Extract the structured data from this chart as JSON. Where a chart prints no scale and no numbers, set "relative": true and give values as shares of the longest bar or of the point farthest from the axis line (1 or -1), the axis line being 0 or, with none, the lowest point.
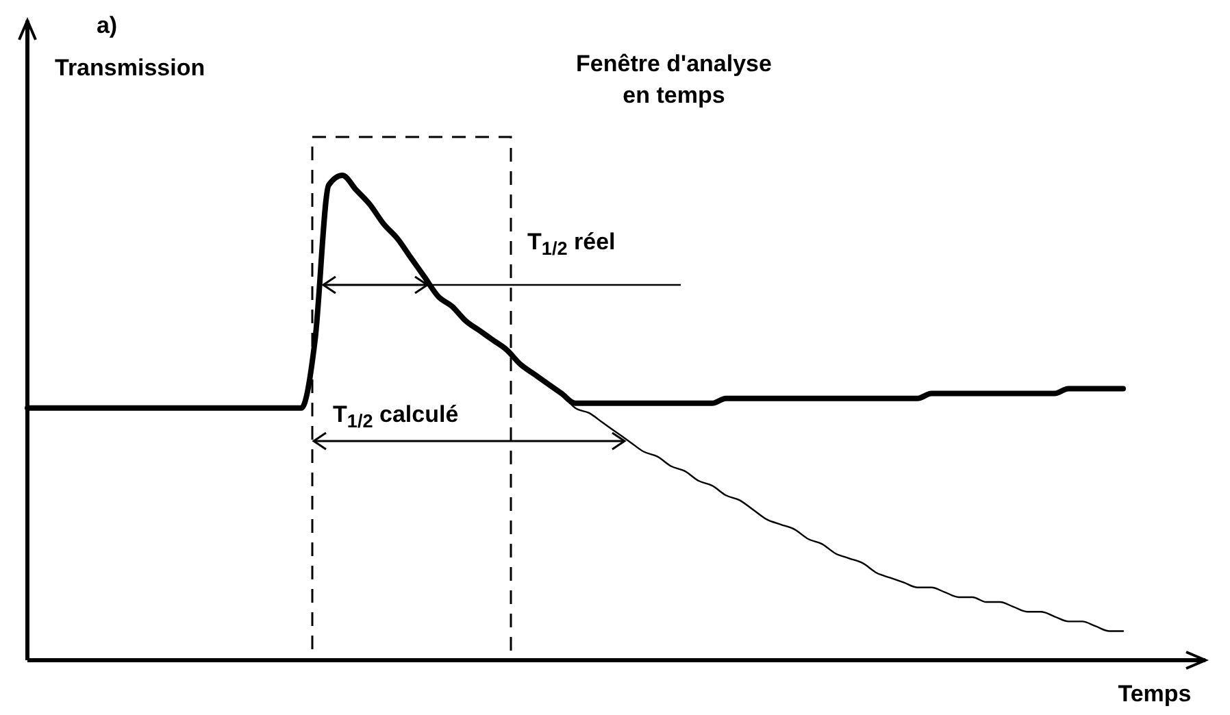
{
  "chart_data": {
    "type": "line",
    "relative": true,
    "title": "a)",
    "ylabel": "Transmission",
    "xlabel": "Temps",
    "categories": [
      null,
      null,
      null,
      null,
      null,
      null,
      null,
      null,
      null,
      null,
      null,
      null,
      null,
      null,
      null,
      null,
      null,
      null,
      null,
      null,
      null,
      null,
      null,
      null,
      null,
      null,
      null,
      null,
      null,
      null,
      null,
      null,
      null,
      null,
      null,
      null,
      null,
      null,
      null,
      null,
      null,
      null,
      null,
      null,
      null,
      null,
      null,
      null,
      null,
      null,
      null,
      null,
      null,
      null,
      null,
      null,
      null,
      null,
      null,
      null,
      null,
      null,
      null,
      null,
      null,
      null,
      null,
      null,
      null,
      null,
      null,
      null,
      null,
      null,
      null,
      null,
      null,
      null,
      null,
      null,
      null
    ],
    "series": [
      {
        "color": "#000000",
        "values": [
          0.52,
          0.52,
          0.52,
          0.52,
          0.52,
          0.52,
          0.52,
          0.52,
          0.52,
          0.52,
          0.52,
          0.52,
          0.52,
          0.52,
          0.52,
          0.52,
          0.52,
          0.52,
          0.52,
          0.52,
          0.52,
          0.66,
          0.98,
          1.0,
          0.97,
          0.94,
          0.9,
          0.87,
          0.83,
          0.79,
          0.75,
          0.73,
          0.7,
          0.68,
          0.66,
          0.64,
          0.61,
          0.59,
          0.57,
          0.55,
          0.53,
          0.53,
          0.53,
          0.53,
          0.53,
          0.53,
          0.53,
          0.53,
          0.53,
          0.53,
          0.53,
          0.54,
          0.54,
          0.54,
          0.54,
          0.54,
          0.54,
          0.54,
          0.54,
          0.54,
          0.54,
          0.54,
          0.54,
          0.54,
          0.54,
          0.54,
          0.55,
          0.55,
          0.55,
          0.55,
          0.55,
          0.55,
          0.55,
          0.55,
          0.55,
          0.55,
          0.56,
          0.56,
          0.56,
          0.56,
          0.56
        ]
      },
      {
        "color": "#000000",
        "values": [
          null,
          null,
          null,
          null,
          null,
          null,
          null,
          null,
          null,
          null,
          null,
          null,
          null,
          null,
          null,
          null,
          null,
          null,
          null,
          null,
          null,
          null,
          null,
          null,
          null,
          null,
          null,
          null,
          null,
          null,
          null,
          null,
          null,
          null,
          null,
          null,
          null,
          null,
          null,
          0.55,
          0.52,
          0.51,
          0.49,
          0.47,
          0.45,
          0.43,
          0.42,
          0.4,
          0.39,
          0.37,
          0.36,
          0.34,
          0.33,
          0.31,
          0.29,
          0.28,
          0.27,
          0.25,
          0.24,
          0.22,
          0.21,
          0.2,
          0.18,
          0.17,
          0.16,
          0.15,
          0.15,
          0.14,
          0.13,
          0.13,
          0.12,
          0.12,
          0.11,
          0.1,
          0.1,
          0.09,
          0.08,
          0.08,
          0.07,
          0.06,
          0.06
        ]
      }
    ],
    "annotations": [
      "Fenêtre d'analyse\nen temps",
      "T$_{1/2}$ réel",
      "T$_{1/2}$ calculé"
    ]
  }
}
